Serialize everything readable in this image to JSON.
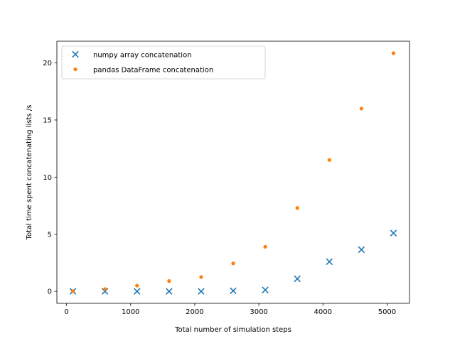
{
  "chart_data": {
    "type": "scatter",
    "title": "",
    "xlabel": "Total number of simulation steps",
    "ylabel": "Total time spent concatenating lists /s",
    "xlim": [
      -150,
      5350
    ],
    "ylim": [
      -1.05,
      21.9
    ],
    "xticks": [
      0,
      1000,
      2000,
      3000,
      4000,
      5000
    ],
    "yticks": [
      0,
      5,
      10,
      15,
      20
    ],
    "grid": false,
    "legend_position": "top-left",
    "series": [
      {
        "name": "numpy array concatenation",
        "marker": "x",
        "color": "#1f77b4",
        "x": [
          100,
          600,
          1100,
          1600,
          2100,
          2600,
          3100,
          3600,
          4100,
          4600,
          5100
        ],
        "y": [
          0.0,
          0.0,
          0.0,
          0.0,
          0.0,
          0.05,
          0.12,
          1.1,
          2.6,
          3.65,
          5.1
        ]
      },
      {
        "name": "pandas DataFrame concatenation",
        "marker": "dot",
        "color": "#ff7f0e",
        "x": [
          100,
          600,
          1100,
          1600,
          2100,
          2600,
          3100,
          3600,
          4100,
          4600,
          5100
        ],
        "y": [
          0.02,
          0.2,
          0.5,
          0.9,
          1.25,
          2.45,
          3.9,
          7.3,
          11.5,
          16.0,
          20.85
        ]
      }
    ]
  }
}
